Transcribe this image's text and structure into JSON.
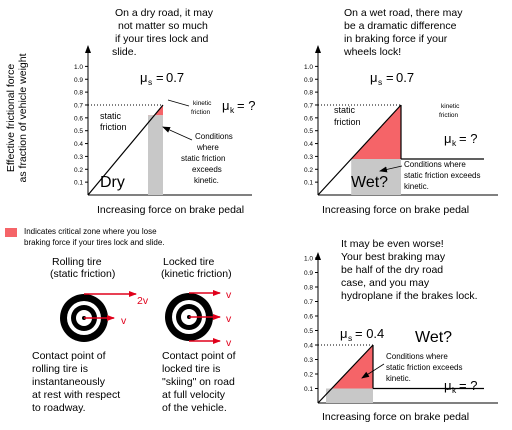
{
  "colors": {
    "critical": "#f56468",
    "overlap": "#c8c8c8",
    "axis": "#000000",
    "arrow": "#e0001b",
    "dotted": "#000000"
  },
  "axis": {
    "ylabel_line1": "Effective frictional force",
    "ylabel_line2": "as fraction of vehicle weight",
    "xlabel": "Increasing force on brake pedal",
    "ticks": [
      "0.1",
      "0.2",
      "0.3",
      "0.4",
      "0.5",
      "0.6",
      "0.7",
      "0.8",
      "0.9",
      "1.0"
    ]
  },
  "dry": {
    "caption": [
      "On a dry road, it may",
      "not matter so much",
      "if your tires lock and",
      "slide."
    ],
    "mu_s_value": "0.7",
    "static_label": [
      "static",
      "friction"
    ],
    "kinetic_label": [
      "kinetic",
      "friction"
    ],
    "mu_k_value": "= ?",
    "conditions": [
      "Conditions",
      "where",
      "static friction",
      "exceeds",
      "kinetic."
    ],
    "road": "Dry",
    "mu_s": 0.7,
    "mu_k": 0.62
  },
  "wet": {
    "caption": [
      "On a wet road, there may",
      "be a dramatic difference",
      "in braking force if your",
      "wheels lock!"
    ],
    "mu_s_value": "0.7",
    "static_label": [
      "static",
      "friction"
    ],
    "kinetic_label": [
      "kinetic",
      "friction"
    ],
    "mu_k_value": "= ?",
    "conditions": [
      "Conditions where",
      "static friction exceeds",
      "kinetic."
    ],
    "road": "Wet?",
    "mu_s": 0.7,
    "mu_k": 0.28
  },
  "worse": {
    "caption": [
      "It may be even worse!",
      "Your best braking may",
      "be half of the dry road",
      "case, and you may",
      "hydroplane if the brakes lock."
    ],
    "mu_s_value": "= 0.4",
    "mu_k_value": "= ?",
    "conditions": [
      "Conditions where",
      "static friction exceeds",
      "kinetic."
    ],
    "road": "Wet?",
    "mu_s": 0.4,
    "mu_k": 0.1
  },
  "legend": {
    "line1": "Indicates critical zone where you lose",
    "line2": "braking force if your tires lock and slide."
  },
  "rolling": {
    "title": [
      "Rolling tire",
      "(static friction)"
    ],
    "v_top": "2v",
    "v_center": "v",
    "caption": [
      "Contact point of",
      "rolling tire is",
      "instantaneously",
      "at rest with respect",
      "to roadway."
    ]
  },
  "locked": {
    "title": [
      "Locked tire",
      "(kinetic friction)"
    ],
    "v_top": "v",
    "v_center": "v",
    "v_bottom": "v",
    "caption": [
      "Contact point of",
      "locked tire is",
      "\"skiing\" on road",
      "at full velocity",
      "of the vehicle."
    ]
  },
  "symbols": {
    "mu": "μ",
    "sub_s": "s",
    "sub_k": "k"
  }
}
